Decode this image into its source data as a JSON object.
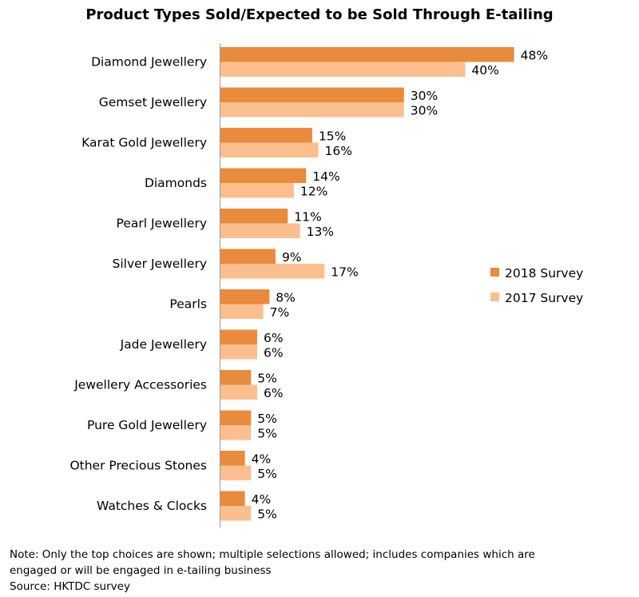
{
  "chart_data": {
    "type": "bar",
    "orientation": "horizontal",
    "title": "Product Types Sold/Expected to be Sold Through E-tailing",
    "categories": [
      "Diamond Jewellery",
      "Gemset Jewellery",
      "Karat Gold Jewellery",
      "Diamonds",
      "Pearl Jewellery",
      "Silver Jewellery",
      "Pearls",
      "Jade Jewellery",
      "Jewellery Accessories",
      "Pure Gold Jewellery",
      "Other Precious Stones",
      "Watches & Clocks"
    ],
    "series": [
      {
        "name": "2018 Survey",
        "color": "#e98b3d",
        "values": [
          48,
          30,
          15,
          14,
          11,
          9,
          8,
          6,
          5,
          5,
          4,
          4
        ]
      },
      {
        "name": "2017 Survey",
        "color": "#fbbf8f",
        "values": [
          40,
          30,
          16,
          12,
          13,
          17,
          7,
          6,
          6,
          5,
          5,
          5
        ]
      }
    ],
    "value_suffix": "%",
    "xlim": [
      0,
      50
    ],
    "legend_position": "right",
    "grid": false
  },
  "notes": {
    "line1": "Note: Only the top choices are shown; multiple selections allowed; includes companies which are",
    "line2": "engaged or will be engaged in e-tailing business",
    "source": "Source: HKTDC survey"
  }
}
